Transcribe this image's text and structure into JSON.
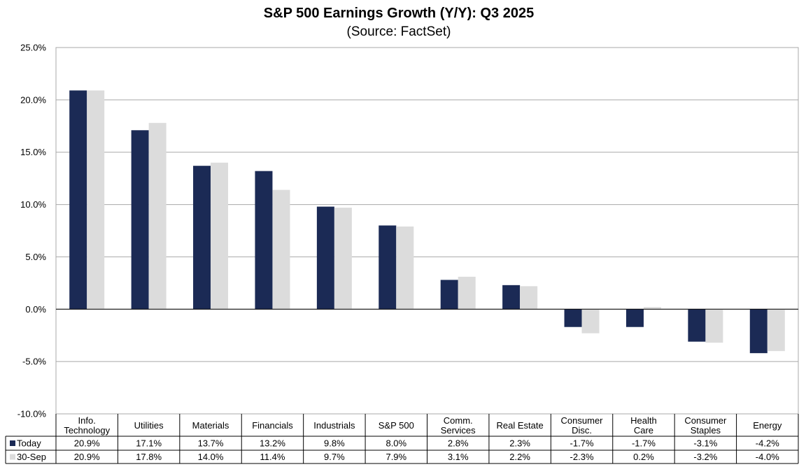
{
  "chart_data": {
    "type": "bar",
    "title": "S&P 500 Earnings Growth (Y/Y): Q3 2025",
    "subtitle": "(Source: FactSet)",
    "xlabel": "",
    "ylabel": "",
    "ylim": [
      -10,
      25
    ],
    "yticks": [
      25,
      20,
      15,
      10,
      5,
      0,
      -5,
      -10
    ],
    "ytick_labels": [
      "25.0%",
      "20.0%",
      "15.0%",
      "10.0%",
      "5.0%",
      "0.0%",
      "-5.0%",
      "-10.0%"
    ],
    "grid": true,
    "categories": [
      [
        "Info.",
        "Technology"
      ],
      [
        "Utilities"
      ],
      [
        "Materials"
      ],
      [
        "Financials"
      ],
      [
        "Industrials"
      ],
      [
        "S&P 500"
      ],
      [
        "Comm.",
        "Services"
      ],
      [
        "Real Estate"
      ],
      [
        "Consumer",
        "Disc."
      ],
      [
        "Health",
        "Care"
      ],
      [
        "Consumer",
        "Staples"
      ],
      [
        "Energy"
      ]
    ],
    "series": [
      {
        "name": "Today",
        "color": "#1b2a55",
        "values": [
          20.9,
          17.1,
          13.7,
          13.2,
          9.8,
          8.0,
          2.8,
          2.3,
          -1.7,
          -1.7,
          -3.1,
          -4.2
        ],
        "labels": [
          "20.9%",
          "17.1%",
          "13.7%",
          "13.2%",
          "9.8%",
          "8.0%",
          "2.8%",
          "2.3%",
          "-1.7%",
          "-1.7%",
          "-3.1%",
          "-4.2%"
        ]
      },
      {
        "name": "30-Sep",
        "color": "#dcdcdc",
        "values": [
          20.9,
          17.8,
          14.0,
          11.4,
          9.7,
          7.9,
          3.1,
          2.2,
          -2.3,
          0.2,
          -3.2,
          -4.0
        ],
        "labels": [
          "20.9%",
          "17.8%",
          "14.0%",
          "11.4%",
          "9.7%",
          "7.9%",
          "3.1%",
          "2.2%",
          "-2.3%",
          "0.2%",
          "-3.2%",
          "-4.0%"
        ]
      }
    ],
    "legend": "data-table-left"
  }
}
